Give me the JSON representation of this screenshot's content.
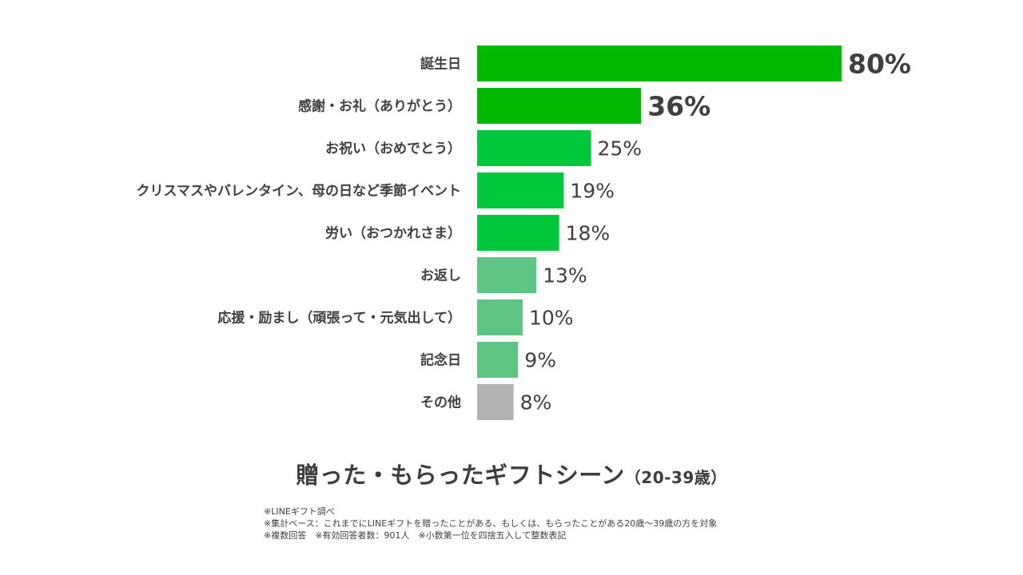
{
  "chart_data": {
    "type": "bar",
    "orientation": "horizontal",
    "title": "贈った・もらったギフトシーン",
    "subtitle": "（20-39歳）",
    "categories": [
      "誕生日",
      "感謝・お礼（ありがとう）",
      "お祝い（おめでとう）",
      "クリスマスやバレンタイン、母の日など季節イベント",
      "労い（おつかれさま）",
      "お返し",
      "応援・励まし（頑張って・元気出して）",
      "記念日",
      "その他"
    ],
    "values": [
      80,
      36,
      25,
      19,
      18,
      13,
      10,
      9,
      8
    ],
    "labels": [
      "80%",
      "36%",
      "25%",
      "19%",
      "18%",
      "13%",
      "10%",
      "9%",
      "8%"
    ],
    "colors": [
      "#00b900",
      "#00b900",
      "#00c83c",
      "#00c83c",
      "#00c83c",
      "#5ec585",
      "#5ec585",
      "#5ec585",
      "#b3b3b3"
    ],
    "emphasized": [
      true,
      true,
      false,
      false,
      false,
      false,
      false,
      false,
      false
    ],
    "xlim": [
      0,
      100
    ],
    "grid": false,
    "legend": "none"
  },
  "notes": [
    "※LINEギフト調べ",
    "※集計ベース：これまでにLINEギフトを贈ったことがある、もしくは、もらったことがある20歳〜39歳の方を対象",
    "※複数回答　※有効回答者数：901人　※小数第一位を四捨五入して整数表記"
  ]
}
